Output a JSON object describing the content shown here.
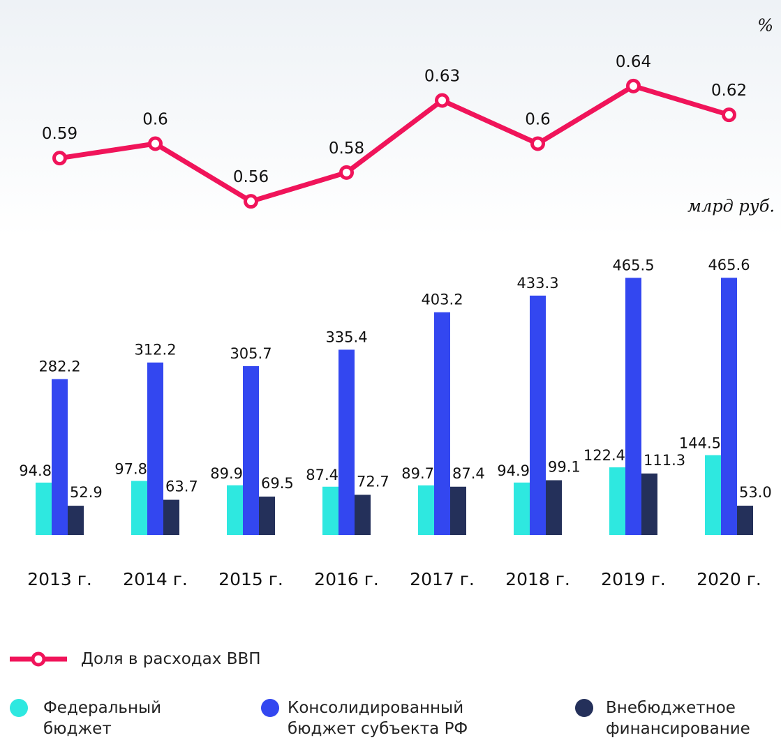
{
  "chart_data": {
    "type": "bar",
    "y2label": "%",
    "ylabel": "млрд руб.",
    "categories": [
      "2013 г.",
      "2014 г.",
      "2015 г.",
      "2016 г.",
      "2017 г.",
      "2018 г.",
      "2019 г.",
      "2020 г."
    ],
    "ylim": [
      0,
      500
    ],
    "y2lim": [
      0.54,
      0.69
    ],
    "series": [
      {
        "name": "Доля в расходах ВВП",
        "type": "line",
        "axis": "y2",
        "color": "#f0145a",
        "values": [
          0.59,
          0.6,
          0.56,
          0.58,
          0.63,
          0.6,
          0.64,
          0.62
        ]
      },
      {
        "name": "Федеральный бюджет",
        "color": "#2ee8e0",
        "values": [
          94.8,
          97.8,
          89.9,
          87.4,
          89.7,
          94.9,
          122.4,
          144.5
        ]
      },
      {
        "name": "Консолидированный бюджет субъекта РФ",
        "color": "#3347f0",
        "values": [
          282.2,
          312.2,
          305.7,
          335.4,
          403.2,
          433.3,
          465.5,
          465.6
        ]
      },
      {
        "name": "Внебюджетное финансирование",
        "color": "#24305a",
        "values": [
          52.9,
          63.7,
          69.5,
          72.7,
          87.4,
          99.1,
          111.3,
          53.0
        ],
        "value_labels": [
          "52.9",
          "63.7",
          "69.5",
          "72.7",
          "87.4",
          "99.1",
          "111.3",
          "53.0"
        ]
      }
    ]
  }
}
